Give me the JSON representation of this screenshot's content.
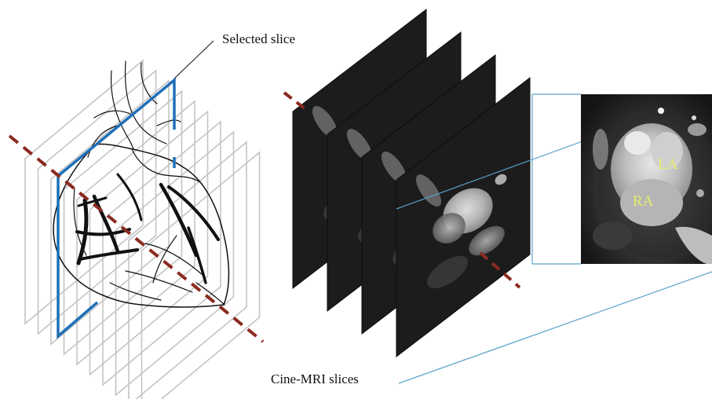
{
  "labels": {
    "selected_slice": "Selected slice",
    "cine_mri_slices": "Cine-MRI slices",
    "la": "LA",
    "ra": "RA"
  },
  "colors": {
    "slice_outline": "#c4c4c4",
    "selected_slice": "#1f6fb8",
    "axis_dash": "#8b2a1f",
    "projection_line": "#5aa3c8",
    "chamber_label": "#e6ef6a",
    "mri_dark": "#1c1c1c"
  },
  "slice_stack": {
    "count": 10,
    "selected_index": 2
  },
  "mri_stack": {
    "count": 4
  }
}
